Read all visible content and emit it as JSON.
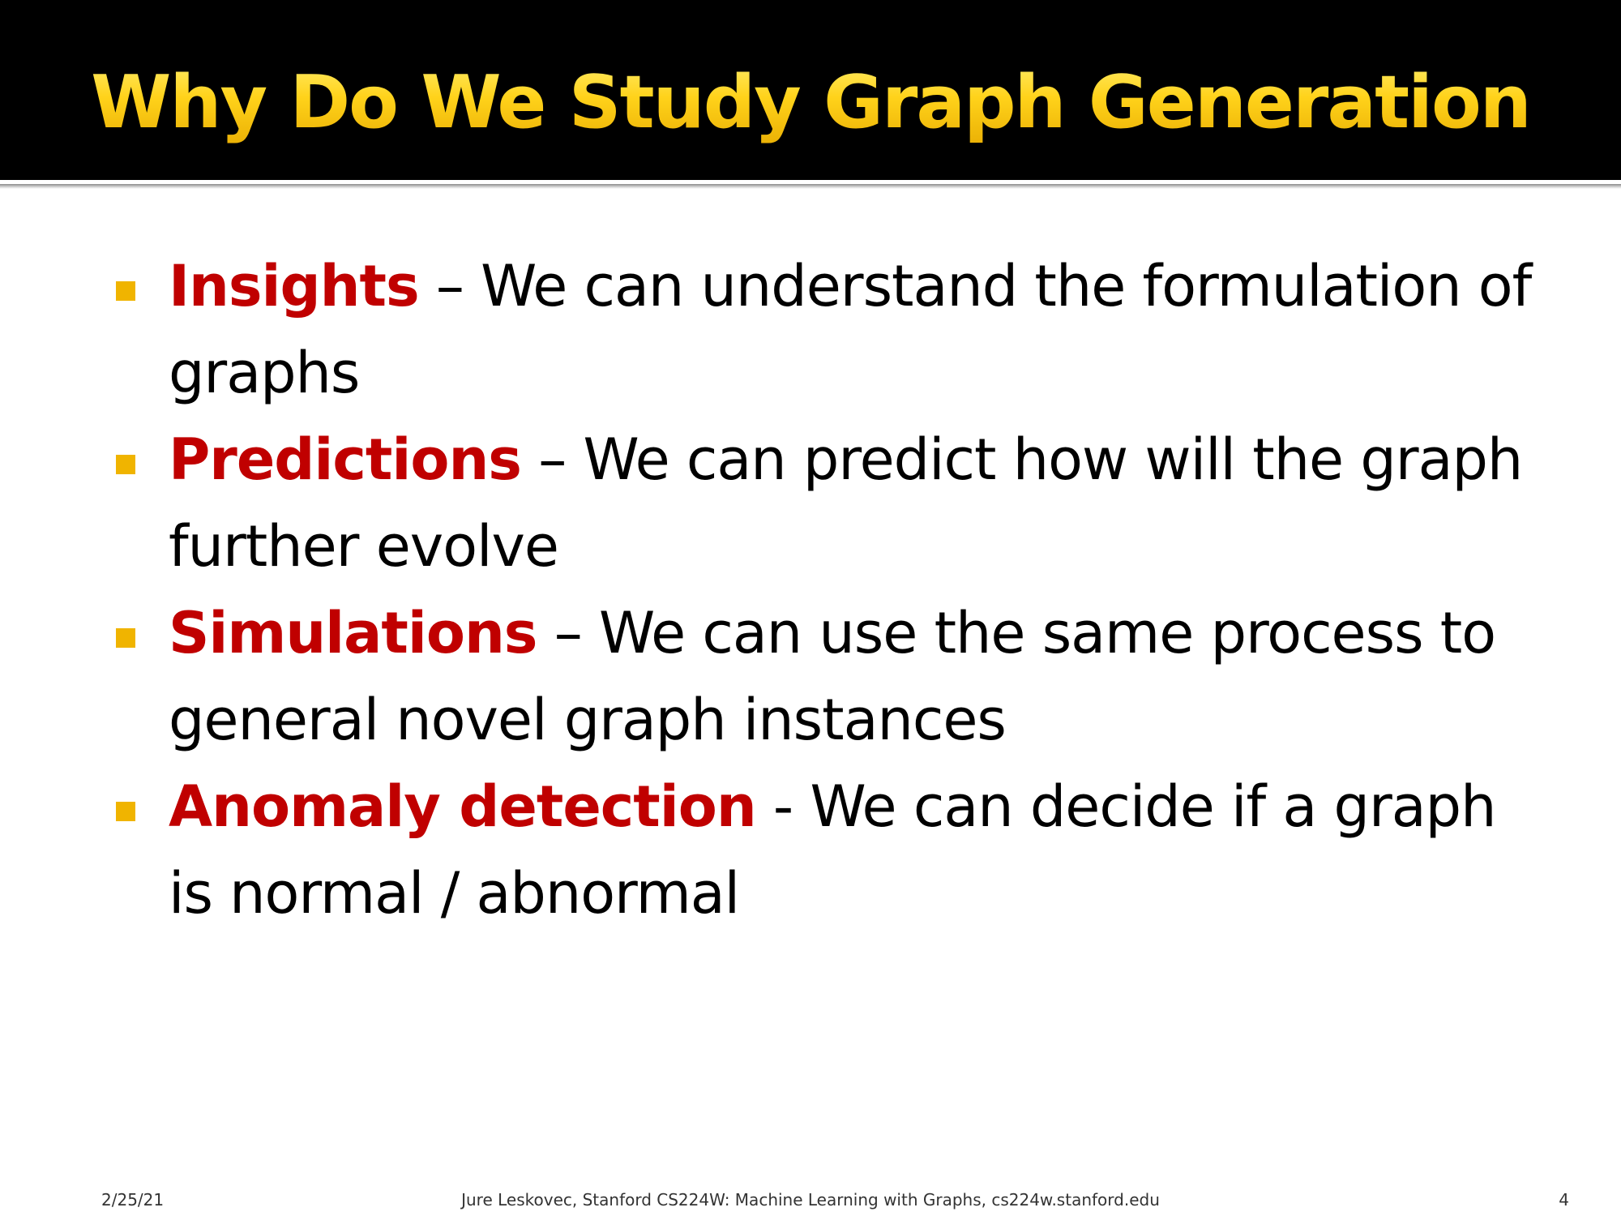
{
  "slide": {
    "title": "Why Do We Study Graph Generation",
    "bullets": [
      {
        "term": "Insights",
        "separator": " – ",
        "text": "We can understand the formulation of graphs"
      },
      {
        "term": "Predictions",
        "separator": " – ",
        "text": "We can predict how will the graph further evolve"
      },
      {
        "term": "Simulations",
        "separator": " – ",
        "text": "We can use the same process to general novel graph instances"
      },
      {
        "term": "Anomaly detection",
        "separator": " - ",
        "text": "We can decide if a graph is normal / abnormal"
      }
    ],
    "footer": {
      "date": "2/25/21",
      "center": "Jure Leskovec, Stanford CS224W: Machine Learning with Graphs, cs224w.stanford.edu",
      "page": "4"
    }
  },
  "colors": {
    "title": "#ffd21a",
    "title_bar": "#000000",
    "term": "#c00000",
    "bullet_marker": "#f0b400",
    "body_text": "#000000"
  },
  "icons": {
    "bullet_marker": "square-bullet-icon"
  }
}
